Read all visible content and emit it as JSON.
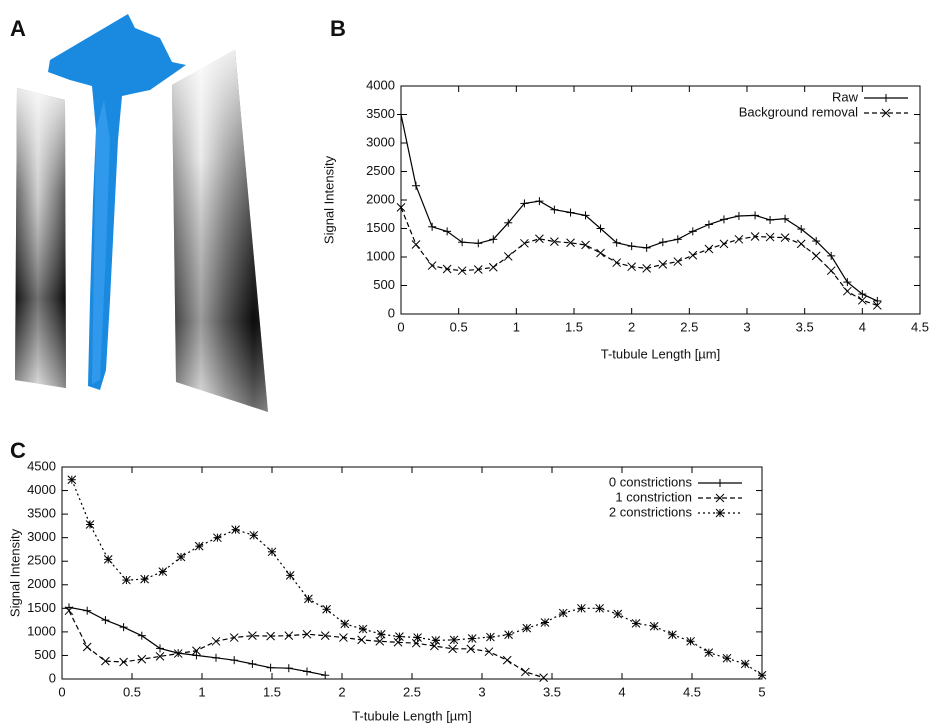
{
  "panel_labels": [
    "A",
    "B",
    "C"
  ],
  "chart_data": [
    {
      "type": "line",
      "xlabel": "T-tubule Length [µm]",
      "ylabel": "Signal Intensity",
      "xlim": [
        0,
        4.5
      ],
      "xticks": [
        0,
        0.5,
        1,
        1.5,
        2,
        2.5,
        3,
        3.5,
        4,
        4.5
      ],
      "ylim": [
        0,
        4000
      ],
      "yticks": [
        0,
        500,
        1000,
        1500,
        2000,
        2500,
        3000,
        3500,
        4000
      ],
      "legend": "top-right",
      "series": [
        {
          "name": "Raw",
          "color": "#000000",
          "dash": "solid",
          "marker": "plus",
          "x": [
            0,
            0.13,
            0.27,
            0.4,
            0.53,
            0.67,
            0.8,
            0.93,
            1.07,
            1.2,
            1.33,
            1.47,
            1.6,
            1.73,
            1.87,
            2.0,
            2.13,
            2.27,
            2.4,
            2.53,
            2.67,
            2.8,
            2.93,
            3.07,
            3.2,
            3.33,
            3.47,
            3.6,
            3.73,
            3.87,
            4.0,
            4.13
          ],
          "values": [
            3500,
            2250,
            1530,
            1450,
            1260,
            1240,
            1310,
            1600,
            1940,
            1980,
            1830,
            1780,
            1730,
            1500,
            1250,
            1190,
            1160,
            1260,
            1310,
            1450,
            1570,
            1660,
            1720,
            1730,
            1650,
            1670,
            1490,
            1280,
            1020,
            560,
            350,
            230
          ]
        },
        {
          "name": "Background removal",
          "color": "#000000",
          "dash": "dashed",
          "marker": "cross",
          "x": [
            0,
            0.13,
            0.27,
            0.4,
            0.53,
            0.67,
            0.8,
            0.93,
            1.07,
            1.2,
            1.33,
            1.47,
            1.6,
            1.73,
            1.87,
            2.0,
            2.13,
            2.27,
            2.4,
            2.53,
            2.67,
            2.8,
            2.93,
            3.07,
            3.2,
            3.33,
            3.47,
            3.6,
            3.73,
            3.87,
            4.0,
            4.13
          ],
          "values": [
            1870,
            1220,
            850,
            790,
            760,
            780,
            820,
            1010,
            1240,
            1320,
            1270,
            1250,
            1210,
            1070,
            900,
            830,
            800,
            870,
            920,
            1030,
            1140,
            1230,
            1310,
            1360,
            1350,
            1340,
            1230,
            1020,
            760,
            400,
            240,
            150
          ]
        }
      ]
    },
    {
      "type": "line",
      "xlabel": "T-tubule Length [µm]",
      "ylabel": "Signal Intensity",
      "xlim": [
        0,
        5
      ],
      "xticks": [
        0,
        0.5,
        1,
        1.5,
        2,
        2.5,
        3,
        3.5,
        4,
        4.5,
        5
      ],
      "ylim": [
        0,
        4500
      ],
      "yticks": [
        0,
        500,
        1000,
        1500,
        2000,
        2500,
        3000,
        3500,
        4000,
        4500
      ],
      "legend": "top-right",
      "series": [
        {
          "name": "0 constrictions",
          "color": "#000000",
          "dash": "solid",
          "marker": "plus",
          "x": [
            0.05,
            0.18,
            0.31,
            0.44,
            0.57,
            0.7,
            0.83,
            0.96,
            1.1,
            1.23,
            1.36,
            1.49,
            1.62,
            1.75,
            1.88
          ],
          "values": [
            1520,
            1450,
            1250,
            1100,
            920,
            650,
            550,
            500,
            450,
            400,
            320,
            240,
            230,
            160,
            80
          ]
        },
        {
          "name": "1 constriction",
          "color": "#000000",
          "dash": "dashed",
          "marker": "cross",
          "x": [
            0.05,
            0.18,
            0.31,
            0.44,
            0.57,
            0.7,
            0.83,
            0.96,
            1.1,
            1.23,
            1.36,
            1.49,
            1.62,
            1.75,
            1.88,
            2.01,
            2.14,
            2.27,
            2.4,
            2.53,
            2.66,
            2.79,
            2.92,
            3.05,
            3.18,
            3.31,
            3.44
          ],
          "values": [
            1450,
            680,
            380,
            360,
            420,
            480,
            540,
            600,
            800,
            880,
            920,
            910,
            920,
            950,
            920,
            880,
            830,
            800,
            780,
            760,
            700,
            640,
            640,
            580,
            400,
            150,
            30
          ]
        },
        {
          "name": "2 constrictions",
          "color": "#000000",
          "dash": "dotted",
          "marker": "star",
          "x": [
            0.07,
            0.2,
            0.33,
            0.46,
            0.59,
            0.72,
            0.85,
            0.98,
            1.11,
            1.24,
            1.37,
            1.5,
            1.63,
            1.76,
            1.89,
            2.02,
            2.15,
            2.28,
            2.41,
            2.54,
            2.67,
            2.8,
            2.93,
            3.06,
            3.19,
            3.32,
            3.45,
            3.58,
            3.71,
            3.84,
            3.97,
            4.1,
            4.23,
            4.36,
            4.49,
            4.62,
            4.75,
            4.88,
            5.0
          ],
          "values": [
            4230,
            3280,
            2540,
            2100,
            2120,
            2280,
            2590,
            2820,
            3000,
            3170,
            3050,
            2700,
            2200,
            1700,
            1480,
            1170,
            1060,
            950,
            900,
            880,
            820,
            830,
            860,
            890,
            940,
            1080,
            1200,
            1400,
            1500,
            1500,
            1380,
            1180,
            1120,
            940,
            800,
            560,
            440,
            320,
            80
          ]
        }
      ]
    }
  ]
}
